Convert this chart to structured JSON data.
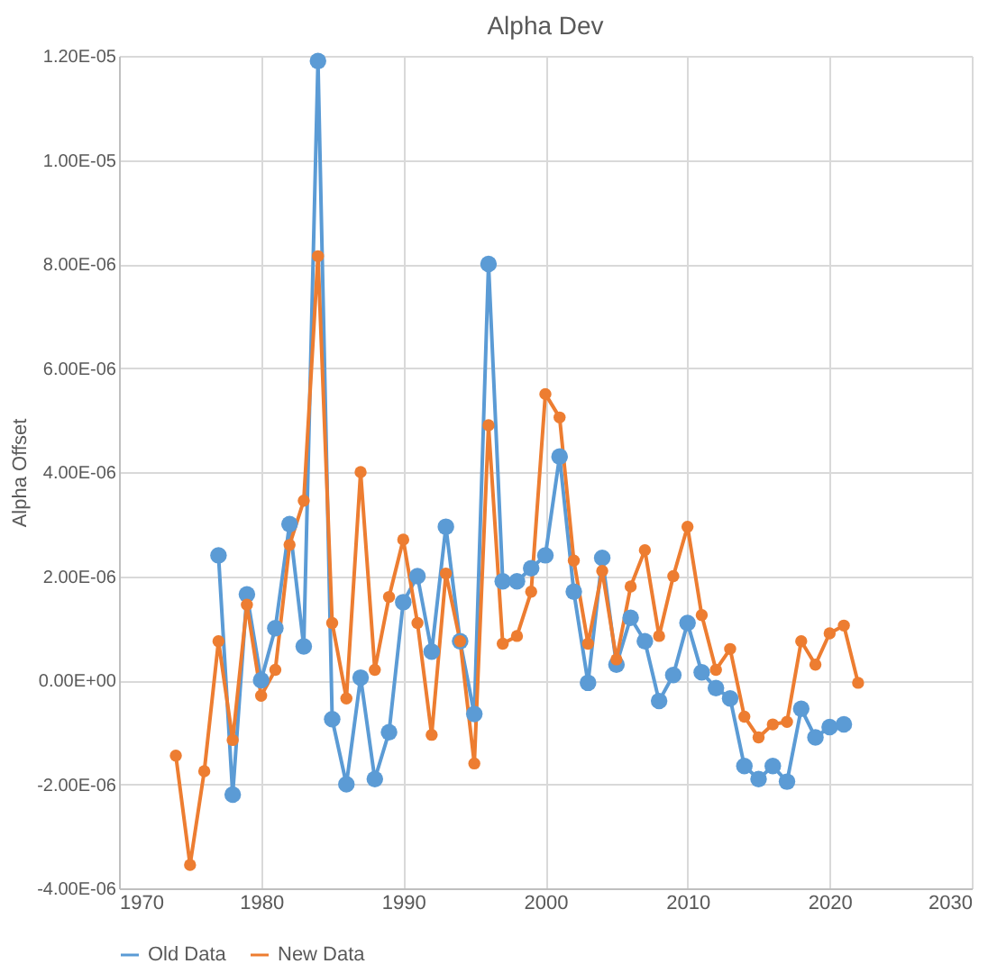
{
  "chart_data": {
    "type": "line",
    "title": "Alpha Dev",
    "ylabel": "Alpha Offset",
    "series": [
      {
        "name": "Old Data",
        "color": "#5b9bd5",
        "x": [
          1977,
          1978,
          1979,
          1980,
          1981,
          1982,
          1983,
          1984,
          1985,
          1986,
          1987,
          1988,
          1989,
          1990,
          1991,
          1992,
          1993,
          1994,
          1995,
          1996,
          1997,
          1998,
          1999,
          2000,
          2001,
          2002,
          2003,
          2004,
          2005,
          2006,
          2007,
          2008,
          2009,
          2010,
          2011,
          2012,
          2013,
          2014,
          2015,
          2016,
          2017,
          2018,
          2019,
          2020,
          2021
        ],
        "values": [
          2.4e-06,
          -2.2e-06,
          1.65e-06,
          0.0,
          1e-06,
          3e-06,
          6.5e-07,
          1.19e-05,
          -7.5e-07,
          -2e-06,
          5e-08,
          -1.9e-06,
          -1e-06,
          1.5e-06,
          2e-06,
          5.5e-07,
          2.95e-06,
          7.5e-07,
          -6.5e-07,
          8e-06,
          1.9e-06,
          1.9e-06,
          2.15e-06,
          2.4e-06,
          4.3e-06,
          1.7e-06,
          -5e-08,
          2.35e-06,
          3e-07,
          1.2e-06,
          7.5e-07,
          -4e-07,
          1e-07,
          1.1e-06,
          1.5e-07,
          -1.5e-07,
          -3.5e-07,
          -1.65e-06,
          -1.9e-06,
          -1.65e-06,
          -1.95e-06,
          -5.5e-07,
          -1.1e-06,
          -9e-07,
          -8.5e-07
        ]
      },
      {
        "name": "New Data",
        "color": "#ed7d31",
        "x": [
          1974,
          1975,
          1976,
          1977,
          1978,
          1979,
          1980,
          1981,
          1982,
          1983,
          1984,
          1985,
          1986,
          1987,
          1988,
          1989,
          1990,
          1991,
          1992,
          1993,
          1994,
          1995,
          1996,
          1997,
          1998,
          1999,
          2000,
          2001,
          2002,
          2003,
          2004,
          2005,
          2006,
          2007,
          2008,
          2009,
          2010,
          2011,
          2012,
          2013,
          2014,
          2015,
          2016,
          2017,
          2018,
          2019,
          2020,
          2021,
          2022
        ],
        "values": [
          -1.45e-06,
          -3.55e-06,
          -1.75e-06,
          7.5e-07,
          -1.15e-06,
          1.45e-06,
          -3e-07,
          2e-07,
          2.6e-06,
          3.45e-06,
          8.15e-06,
          1.1e-06,
          -3.5e-07,
          4e-06,
          2e-07,
          1.6e-06,
          2.7e-06,
          1.1e-06,
          -1.05e-06,
          2.05e-06,
          7.5e-07,
          -1.6e-06,
          4.9e-06,
          7e-07,
          8.5e-07,
          1.7e-06,
          5.5e-06,
          5.05e-06,
          2.3e-06,
          7e-07,
          2.1e-06,
          4e-07,
          1.8e-06,
          2.5e-06,
          8.5e-07,
          2e-06,
          2.95e-06,
          1.25e-06,
          2e-07,
          6e-07,
          -7e-07,
          -1.1e-06,
          -8.5e-07,
          -8e-07,
          7.5e-07,
          3e-07,
          9e-07,
          1.05e-06,
          -5e-08
        ]
      }
    ],
    "xlim": [
      1970,
      2030
    ],
    "xticks": [
      1970,
      1980,
      1990,
      2000,
      2010,
      2020,
      2030
    ],
    "ylim": [
      -4e-06,
      1.2e-05
    ],
    "yticks": [
      {
        "value": -4e-06,
        "label": "-4.00E-06"
      },
      {
        "value": -2e-06,
        "label": "-2.00E-06"
      },
      {
        "value": 0,
        "label": "0.00E+00"
      },
      {
        "value": 2e-06,
        "label": "2.00E-06"
      },
      {
        "value": 4e-06,
        "label": "4.00E-06"
      },
      {
        "value": 6e-06,
        "label": "6.00E-06"
      },
      {
        "value": 8e-06,
        "label": "8.00E-06"
      },
      {
        "value": 1e-05,
        "label": "1.00E-05"
      },
      {
        "value": 1.2e-05,
        "label": "1.20E-05"
      }
    ],
    "grid": true,
    "legend": "bottom",
    "marker": "circle",
    "line_style": "solid"
  }
}
